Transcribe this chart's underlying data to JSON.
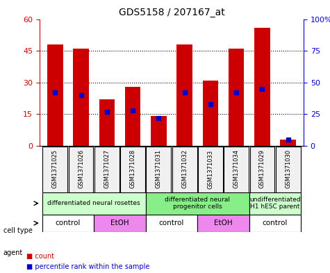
{
  "title": "GDS5158 / 207167_at",
  "samples": [
    "GSM1371025",
    "GSM1371026",
    "GSM1371027",
    "GSM1371028",
    "GSM1371031",
    "GSM1371032",
    "GSM1371033",
    "GSM1371034",
    "GSM1371029",
    "GSM1371030"
  ],
  "counts": [
    48,
    46,
    22,
    28,
    14,
    48,
    31,
    46,
    56,
    3
  ],
  "percentiles": [
    42,
    40,
    27,
    28,
    22,
    42,
    33,
    42,
    45,
    5
  ],
  "ylim_left": [
    0,
    60
  ],
  "ylim_right": [
    0,
    100
  ],
  "yticks_left": [
    0,
    15,
    30,
    45,
    60
  ],
  "ytick_labels_left": [
    "0",
    "15",
    "30",
    "45",
    "60"
  ],
  "yticks_right": [
    0,
    25,
    50,
    75,
    100
  ],
  "ytick_labels_right": [
    "0",
    "25",
    "50",
    "75",
    "100%"
  ],
  "bar_color": "#cc0000",
  "blue_color": "#0000cc",
  "cell_types": [
    {
      "label": "differentiated neural rosettes",
      "start": 0,
      "end": 4,
      "color": "#ccffcc"
    },
    {
      "label": "differentiated neural\nprogenitor cells",
      "start": 4,
      "end": 8,
      "color": "#88ee88"
    },
    {
      "label": "undifferentiated\nH1 hESC parent",
      "start": 8,
      "end": 10,
      "color": "#ccffcc"
    }
  ],
  "agents": [
    {
      "label": "control",
      "start": 0,
      "end": 2,
      "color": "#ffffff"
    },
    {
      "label": "EtOH",
      "start": 2,
      "end": 4,
      "color": "#ee88ee"
    },
    {
      "label": "control",
      "start": 4,
      "end": 6,
      "color": "#ffffff"
    },
    {
      "label": "EtOH",
      "start": 6,
      "end": 8,
      "color": "#ee88ee"
    },
    {
      "label": "control",
      "start": 8,
      "end": 10,
      "color": "#ffffff"
    }
  ],
  "legend_count_color": "#cc0000",
  "legend_pct_color": "#0000cc",
  "left_axis_color": "#cc0000",
  "right_axis_color": "#0000cc",
  "background_color": "#f0f0f0"
}
